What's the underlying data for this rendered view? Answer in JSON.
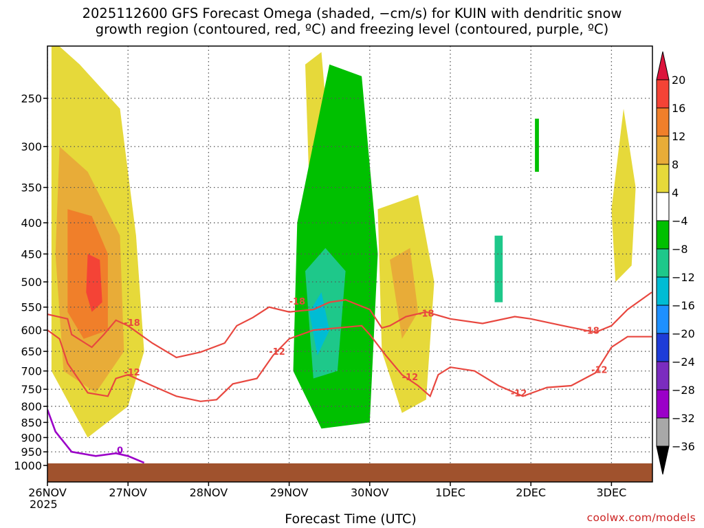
{
  "title_line1": "2025112600 GFS Forecast Omega (shaded, −cm/s) for KUIN with dendritic snow",
  "title_line2": "growth region (contoured, red, ºC) and freezing level (contoured, purple, ºC)",
  "credit": "coolwx.com/models",
  "chart_data": {
    "type": "heatmap",
    "xlabel": "Forecast Time (UTC)",
    "x_ticks": [
      {
        "label": "26NOV",
        "sublabel": "2025",
        "day": 0
      },
      {
        "label": "27NOV",
        "day": 1
      },
      {
        "label": "28NOV",
        "day": 2
      },
      {
        "label": "29NOV",
        "day": 3
      },
      {
        "label": "30NOV",
        "day": 4
      },
      {
        "label": "1DEC",
        "day": 5
      },
      {
        "label": "2DEC",
        "day": 6
      },
      {
        "label": "3DEC",
        "day": 7
      }
    ],
    "x_range_days": [
      0,
      7.5
    ],
    "y_scale": "log-pressure",
    "y_range_hpa": [
      1030,
      200
    ],
    "y_ticks": [
      "250",
      "300",
      "350",
      "400",
      "450",
      "500",
      "550",
      "600",
      "650",
      "700",
      "750",
      "800",
      "850",
      "900",
      "950",
      "1000"
    ],
    "grid": true,
    "colorbar": {
      "labels": [
        "20",
        "16",
        "12",
        "8",
        "4",
        "−4",
        "−8",
        "−12",
        "−16",
        "−20",
        "−24",
        "−28",
        "−32",
        "−36"
      ],
      "colors": [
        "#dc143c",
        "#f44336",
        "#f07f2a",
        "#e8ac38",
        "#e6d93a",
        "#ffffff",
        "#00c000",
        "#1ec88a",
        "#00bcd4",
        "#1e90ff",
        "#1e3cd8",
        "#7b2cbf",
        "#9b00c8",
        "#a8a8a8",
        "#000000"
      ]
    },
    "dgz_contours": [
      {
        "label": "-18",
        "points": [
          [
            0,
            565
          ],
          [
            0.25,
            575
          ],
          [
            0.3,
            610
          ],
          [
            0.55,
            640
          ],
          [
            0.7,
            610
          ],
          [
            0.85,
            578
          ],
          [
            1,
            590
          ],
          [
            1.3,
            630
          ],
          [
            1.6,
            665
          ],
          [
            1.9,
            652
          ],
          [
            2.2,
            630
          ],
          [
            2.35,
            590
          ],
          [
            2.55,
            572
          ],
          [
            2.75,
            550
          ],
          [
            3,
            560
          ],
          [
            3.3,
            555
          ],
          [
            3.5,
            540
          ],
          [
            3.7,
            535
          ],
          [
            4.0,
            555
          ],
          [
            4.15,
            595
          ],
          [
            4.25,
            590
          ],
          [
            4.45,
            570
          ],
          [
            4.7,
            560
          ],
          [
            5,
            575
          ],
          [
            5.4,
            585
          ],
          [
            5.8,
            570
          ],
          [
            6,
            575
          ],
          [
            6.4,
            590
          ],
          [
            6.8,
            605
          ],
          [
            7.0,
            590
          ],
          [
            7.2,
            555
          ],
          [
            7.5,
            520
          ]
        ]
      },
      {
        "label": "-12",
        "points": [
          [
            0,
            600
          ],
          [
            0.15,
            620
          ],
          [
            0.25,
            680
          ],
          [
            0.5,
            760
          ],
          [
            0.75,
            770
          ],
          [
            0.85,
            720
          ],
          [
            1,
            710
          ],
          [
            1.3,
            740
          ],
          [
            1.6,
            770
          ],
          [
            1.9,
            785
          ],
          [
            2.1,
            780
          ],
          [
            2.3,
            735
          ],
          [
            2.6,
            720
          ],
          [
            2.8,
            660
          ],
          [
            3,
            620
          ],
          [
            3.3,
            600
          ],
          [
            3.6,
            595
          ],
          [
            3.9,
            590
          ],
          [
            4.0,
            610
          ],
          [
            4.2,
            660
          ],
          [
            4.4,
            710
          ],
          [
            4.6,
            740
          ],
          [
            4.75,
            770
          ],
          [
            4.85,
            710
          ],
          [
            5,
            690
          ],
          [
            5.3,
            700
          ],
          [
            5.6,
            740
          ],
          [
            5.9,
            770
          ],
          [
            6.2,
            745
          ],
          [
            6.5,
            740
          ],
          [
            6.8,
            705
          ],
          [
            7.0,
            640
          ],
          [
            7.2,
            615
          ],
          [
            7.5,
            615
          ]
        ]
      }
    ],
    "freezing_contours": [
      {
        "label": "0",
        "points": [
          [
            0,
            810
          ],
          [
            0.1,
            880
          ],
          [
            0.3,
            950
          ],
          [
            0.6,
            965
          ],
          [
            0.85,
            955
          ],
          [
            1.0,
            965
          ],
          [
            1.2,
            990
          ]
        ]
      }
    ],
    "omega_regions": [
      {
        "color": "#e6d93a",
        "poly": [
          [
            0.05,
            200
          ],
          [
            0.4,
            220
          ],
          [
            0.9,
            260
          ],
          [
            1.1,
            420
          ],
          [
            1.2,
            650
          ],
          [
            1.0,
            800
          ],
          [
            0.5,
            900
          ],
          [
            0.05,
            700
          ]
        ]
      },
      {
        "color": "#e8ac38",
        "poly": [
          [
            0.15,
            300
          ],
          [
            0.5,
            330
          ],
          [
            0.9,
            420
          ],
          [
            0.95,
            650
          ],
          [
            0.6,
            760
          ],
          [
            0.2,
            700
          ],
          [
            0.1,
            450
          ]
        ]
      },
      {
        "color": "#f07f2a",
        "poly": [
          [
            0.25,
            380
          ],
          [
            0.55,
            390
          ],
          [
            0.75,
            450
          ],
          [
            0.75,
            600
          ],
          [
            0.45,
            620
          ],
          [
            0.25,
            560
          ]
        ]
      },
      {
        "color": "#f44336",
        "poly": [
          [
            0.5,
            450
          ],
          [
            0.65,
            460
          ],
          [
            0.68,
            540
          ],
          [
            0.55,
            560
          ],
          [
            0.48,
            520
          ]
        ]
      },
      {
        "color": "#e6d93a",
        "poly": [
          [
            3.2,
            220
          ],
          [
            3.4,
            210
          ],
          [
            3.5,
            300
          ],
          [
            3.45,
            500
          ],
          [
            3.3,
            520
          ],
          [
            3.25,
            350
          ]
        ]
      },
      {
        "color": "#00c000",
        "poly": [
          [
            3.1,
            400
          ],
          [
            3.5,
            220
          ],
          [
            3.9,
            230
          ],
          [
            4.1,
            450
          ],
          [
            4.0,
            850
          ],
          [
            3.4,
            870
          ],
          [
            3.05,
            700
          ]
        ]
      },
      {
        "color": "#1ec88a",
        "poly": [
          [
            3.2,
            480
          ],
          [
            3.45,
            440
          ],
          [
            3.7,
            480
          ],
          [
            3.6,
            700
          ],
          [
            3.3,
            720
          ]
        ]
      },
      {
        "color": "#00bcd4",
        "poly": [
          [
            3.25,
            560
          ],
          [
            3.4,
            520
          ],
          [
            3.5,
            600
          ],
          [
            3.35,
            660
          ]
        ]
      },
      {
        "color": "#e6d93a",
        "poly": [
          [
            4.1,
            380
          ],
          [
            4.6,
            360
          ],
          [
            4.8,
            500
          ],
          [
            4.7,
            780
          ],
          [
            4.4,
            820
          ],
          [
            4.15,
            650
          ]
        ]
      },
      {
        "color": "#e8ac38",
        "poly": [
          [
            4.25,
            460
          ],
          [
            4.5,
            440
          ],
          [
            4.6,
            560
          ],
          [
            4.4,
            620
          ]
        ]
      },
      {
        "color": "#e6d93a",
        "poly": [
          [
            7.0,
            380
          ],
          [
            7.15,
            260
          ],
          [
            7.3,
            350
          ],
          [
            7.25,
            470
          ],
          [
            7.05,
            500
          ]
        ]
      },
      {
        "color": "#00c000",
        "poly": [
          [
            6.05,
            270
          ],
          [
            6.1,
            270
          ],
          [
            6.1,
            330
          ],
          [
            6.05,
            330
          ]
        ]
      },
      {
        "color": "#1ec88a",
        "poly": [
          [
            5.55,
            420
          ],
          [
            5.65,
            420
          ],
          [
            5.65,
            540
          ],
          [
            5.55,
            540
          ]
        ]
      }
    ],
    "contour_labels": [
      {
        "text": "-18",
        "day": 3.1,
        "hpa": 545
      },
      {
        "text": "-18",
        "day": 1.05,
        "hpa": 590
      },
      {
        "text": "-18",
        "day": 4.7,
        "hpa": 570
      },
      {
        "text": "-18",
        "day": 6.75,
        "hpa": 608
      },
      {
        "text": "-12",
        "day": 2.85,
        "hpa": 658
      },
      {
        "text": "-12",
        "day": 1.05,
        "hpa": 712
      },
      {
        "text": "-12",
        "day": 4.5,
        "hpa": 725
      },
      {
        "text": "-12",
        "day": 5.85,
        "hpa": 770
      },
      {
        "text": "-12",
        "day": 6.85,
        "hpa": 705
      },
      {
        "text": "0",
        "day": 0.9,
        "hpa": 955
      }
    ]
  }
}
